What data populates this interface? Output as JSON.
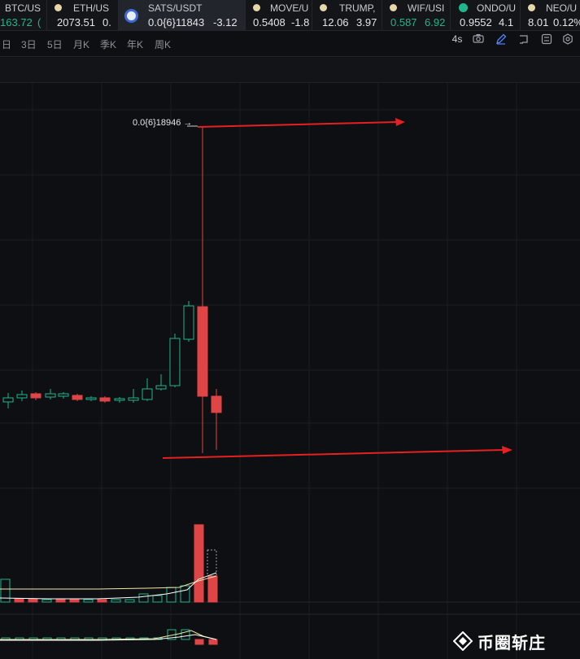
{
  "tickers": [
    {
      "name": "BTC/US",
      "price": "163.72",
      "change": "(",
      "price_up": true,
      "icon": "none",
      "active": false
    },
    {
      "name": "ETH/US",
      "price": "2073.51",
      "change": "0.",
      "price_up": false,
      "icon": "coin-icon",
      "active": false
    },
    {
      "name": "SATS/USDT",
      "price": "0.0{6}11843",
      "change": "-3.12",
      "price_up": false,
      "icon": "sats-icon",
      "active": true
    },
    {
      "name": "MOVE/U",
      "price": "0.5408",
      "change": "-1.8",
      "price_up": false,
      "icon": "coin-icon",
      "active": false
    },
    {
      "name": "TRUMP,",
      "price": "12.06",
      "change": "3.97",
      "price_up": false,
      "icon": "coin-icon",
      "active": false
    },
    {
      "name": "WIF/USI",
      "price": "0.587",
      "change": "6.92",
      "price_up": true,
      "icon": "coin-icon",
      "active": false
    },
    {
      "name": "ONDO/U",
      "price": "0.9552",
      "change": "4.1",
      "price_up": false,
      "icon": "ondo-icon",
      "active": false
    },
    {
      "name": "NEO/U",
      "price": "8.01",
      "change": "0.12%",
      "price_up": false,
      "icon": "coin-icon",
      "active": false
    }
  ],
  "toolbar": {
    "timeframes": [
      "日",
      "3日",
      "5日",
      "月K",
      "季K",
      "年K",
      "周K"
    ],
    "interval": "4s",
    "icons": [
      "camera-icon",
      "pencil-icon",
      "layout-icon",
      "indicator-icon",
      "settings-icon"
    ]
  },
  "chart": {
    "high_label": "0.0{6}18946 →",
    "colors": {
      "up": "#1fb58e",
      "down": "#e04545",
      "arrow": "#e62020",
      "ma1": "#f2e7a6",
      "ma2": "#ffffff"
    }
  },
  "watermark": {
    "text": "币圈斩庄",
    "icon": "diamond-logo-icon"
  }
}
